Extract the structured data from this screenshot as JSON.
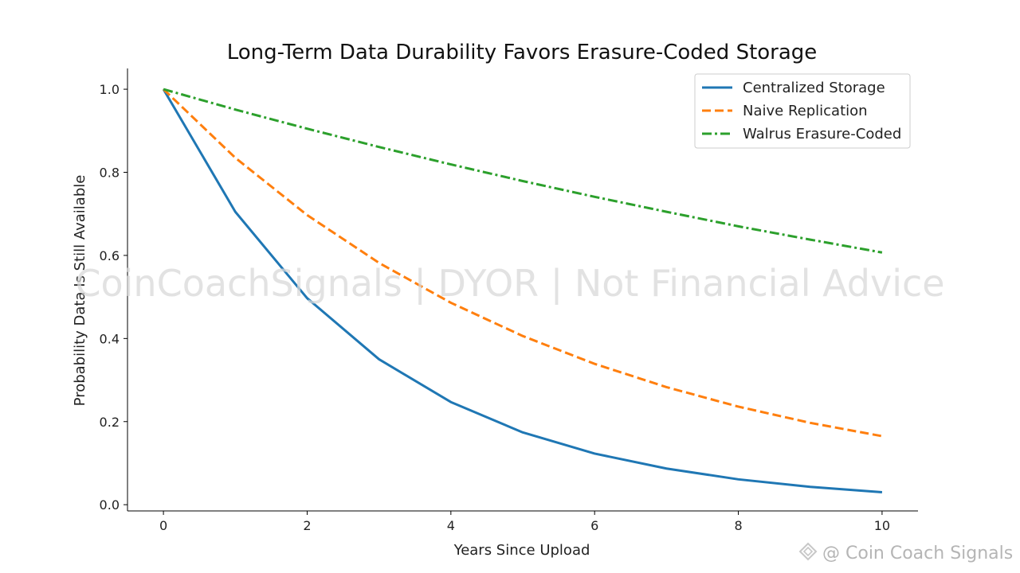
{
  "chart_data": {
    "type": "line",
    "title": "Long-Term Data Durability Favors Erasure-Coded Storage",
    "xlabel": "Years Since Upload",
    "ylabel": "Probability Data Is Still Available",
    "xlim": [
      -0.5,
      10.5
    ],
    "ylim": [
      -0.015,
      1.05
    ],
    "xticks": [
      0,
      2,
      4,
      6,
      8,
      10
    ],
    "yticks": [
      0.0,
      0.2,
      0.4,
      0.6,
      0.8,
      1.0
    ],
    "grid": false,
    "legend_position": "top-right",
    "x": [
      0,
      1,
      2,
      3,
      4,
      5,
      6,
      7,
      8,
      9,
      10
    ],
    "series": [
      {
        "name": "Centralized Storage",
        "style": "solid",
        "color": "#1f77b4",
        "values": [
          1.0,
          0.705,
          0.497,
          0.35,
          0.247,
          0.174,
          0.123,
          0.087,
          0.061,
          0.043,
          0.03
        ]
      },
      {
        "name": "Naive Replication",
        "style": "dashed",
        "color": "#ff7f0e",
        "values": [
          1.0,
          0.835,
          0.697,
          0.582,
          0.486,
          0.406,
          0.339,
          0.283,
          0.236,
          0.197,
          0.165
        ]
      },
      {
        "name": "Walrus Erasure-Coded",
        "style": "dashdot",
        "color": "#2ca02c",
        "values": [
          1.0,
          0.951,
          0.905,
          0.861,
          0.819,
          0.779,
          0.741,
          0.705,
          0.67,
          0.638,
          0.607
        ]
      }
    ]
  },
  "watermark": "CoinCoachSignals | DYOR | Not Financial Advice",
  "credit": "@ Coin Coach Signals"
}
